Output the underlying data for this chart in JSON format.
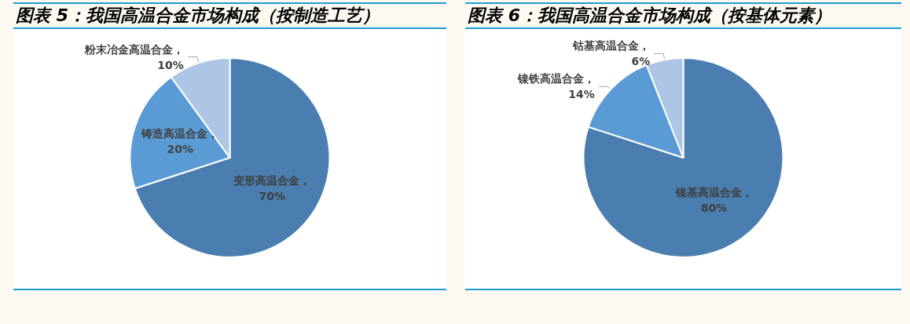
{
  "chart_data": [
    {
      "type": "pie",
      "title": "图表 5：我国高温合金市场构成（按制造工艺）",
      "categories": [
        "变形高温合金",
        "铸造高温合金",
        "粉末冶金高温合金"
      ],
      "values": [
        70,
        20,
        10
      ],
      "colors": [
        "#4a7eb0",
        "#5b9bd5",
        "#adc6e5"
      ],
      "value_labels": [
        "，70%",
        "，20%",
        "，10%"
      ]
    },
    {
      "type": "pie",
      "title": "图表 6：我国高温合金市场构成（按基体元素）",
      "categories": [
        "镍基高温合金",
        "镍铁高温合金",
        "钴基高温合金"
      ],
      "values": [
        80,
        14,
        6
      ],
      "colors": [
        "#4a7eb0",
        "#5b9bd5",
        "#adc6e5"
      ],
      "value_labels": [
        "，80%",
        "，14%",
        "，6%"
      ]
    }
  ]
}
